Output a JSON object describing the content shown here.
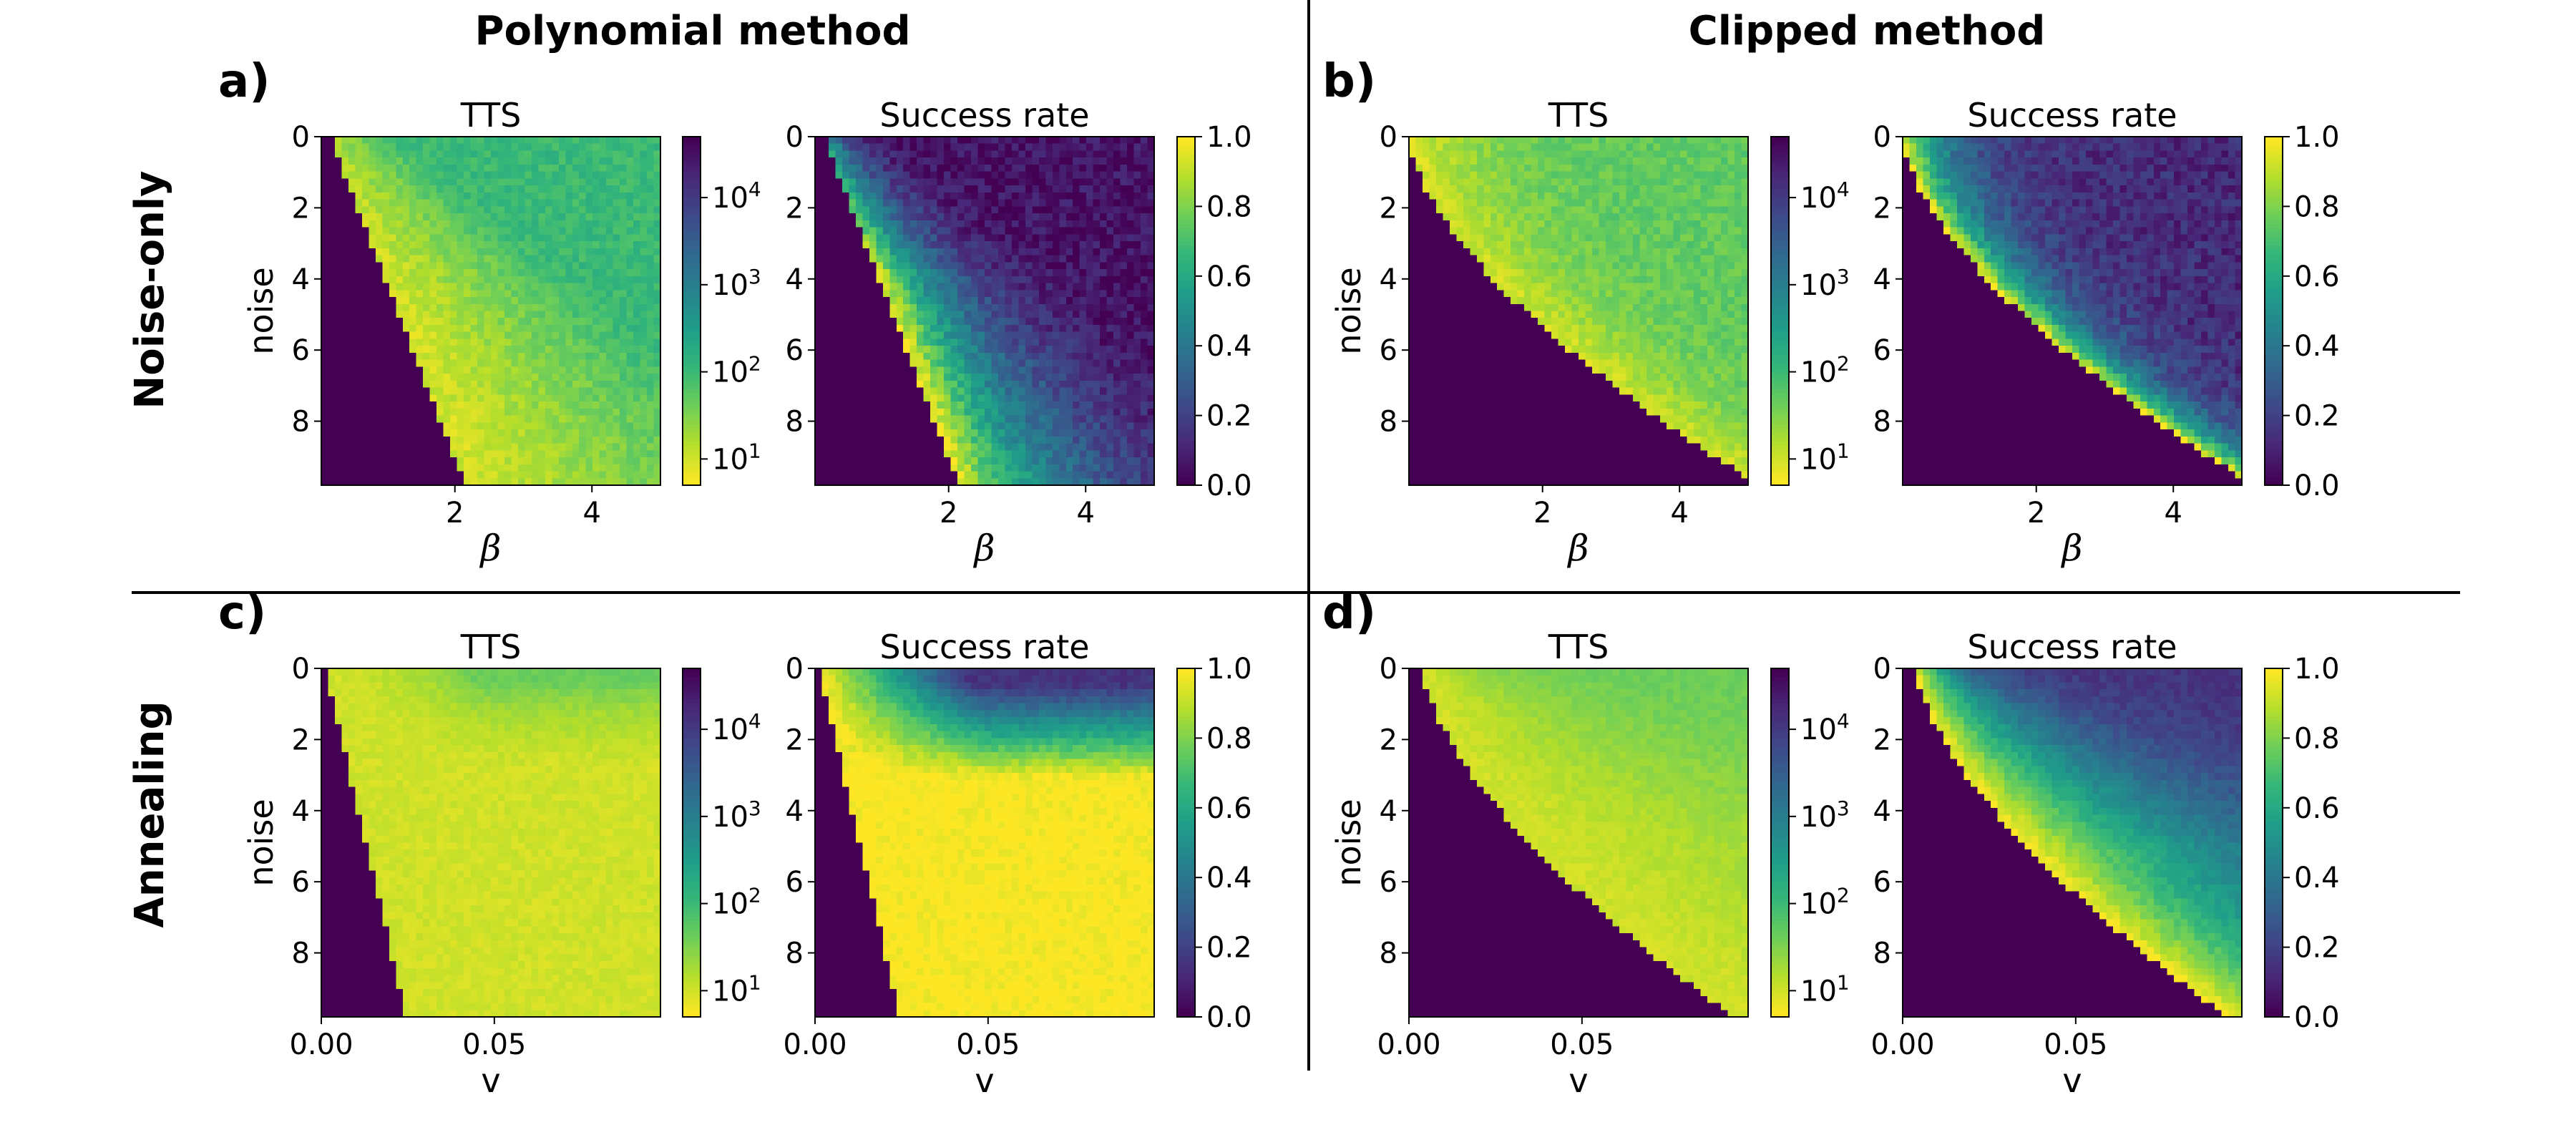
{
  "figure": {
    "column_titles": [
      "Polynomial method",
      "Clipped method"
    ],
    "row_labels": [
      "Noise-only",
      "Annealing"
    ]
  },
  "colormap": {
    "name": "viridis",
    "stops": [
      "#440154",
      "#482878",
      "#3e4989",
      "#31688e",
      "#26828e",
      "#1f9e89",
      "#35b779",
      "#6ece58",
      "#b5de2b",
      "#fde725"
    ]
  },
  "chart_data": [
    {
      "panel": "a)",
      "type": "heatmap",
      "title": "TTS",
      "xlabel": "β",
      "ylabel": "noise",
      "x_range": [
        0.05,
        5.0
      ],
      "y_range": [
        0.0,
        9.8
      ],
      "xticks": [
        "2",
        "4"
      ],
      "yticks": [
        "0",
        "2",
        "4",
        "6",
        "8"
      ],
      "colorbar": {
        "scale": "log",
        "reversed": true,
        "range": [
          5,
          50000
        ],
        "ticks": [
          "10^1",
          "10^2",
          "10^3",
          "10^4"
        ]
      },
      "model": {
        "method": "polynomial",
        "schedule": "noise",
        "metric": "tts"
      }
    },
    {
      "panel": "",
      "type": "heatmap",
      "title": "Success rate",
      "xlabel": "β",
      "ylabel": "",
      "x_range": [
        0.05,
        5.0
      ],
      "y_range": [
        0.0,
        9.8
      ],
      "xticks": [
        "2",
        "4"
      ],
      "yticks": [
        "0",
        "2",
        "4",
        "6",
        "8"
      ],
      "colorbar": {
        "scale": "linear",
        "reversed": false,
        "range": [
          0.0,
          1.0
        ],
        "ticks": [
          "0.0",
          "0.2",
          "0.4",
          "0.6",
          "0.8",
          "1.0"
        ]
      },
      "model": {
        "method": "polynomial",
        "schedule": "noise",
        "metric": "success"
      }
    },
    {
      "panel": "b)",
      "type": "heatmap",
      "title": "TTS",
      "xlabel": "β",
      "ylabel": "noise",
      "x_range": [
        0.05,
        5.0
      ],
      "y_range": [
        0.0,
        9.8
      ],
      "xticks": [
        "2",
        "4"
      ],
      "yticks": [
        "0",
        "2",
        "4",
        "6",
        "8"
      ],
      "colorbar": {
        "scale": "log",
        "reversed": true,
        "range": [
          5,
          50000
        ],
        "ticks": [
          "10^1",
          "10^2",
          "10^3",
          "10^4"
        ]
      },
      "model": {
        "method": "clipped",
        "schedule": "noise",
        "metric": "tts"
      }
    },
    {
      "panel": "",
      "type": "heatmap",
      "title": "Success rate",
      "xlabel": "β",
      "ylabel": "",
      "x_range": [
        0.05,
        5.0
      ],
      "y_range": [
        0.0,
        9.8
      ],
      "xticks": [
        "2",
        "4"
      ],
      "yticks": [
        "0",
        "2",
        "4",
        "6",
        "8"
      ],
      "colorbar": {
        "scale": "linear",
        "reversed": false,
        "range": [
          0.0,
          1.0
        ],
        "ticks": [
          "0.0",
          "0.2",
          "0.4",
          "0.6",
          "0.8",
          "1.0"
        ]
      },
      "model": {
        "method": "clipped",
        "schedule": "noise",
        "metric": "success"
      }
    },
    {
      "panel": "c)",
      "type": "heatmap",
      "title": "TTS",
      "xlabel": "v",
      "ylabel": "noise",
      "x_range": [
        0.0,
        0.098
      ],
      "y_range": [
        0.0,
        9.8
      ],
      "xticks": [
        "0.00",
        "0.05"
      ],
      "yticks": [
        "0",
        "2",
        "4",
        "6",
        "8"
      ],
      "colorbar": {
        "scale": "log",
        "reversed": true,
        "range": [
          5,
          50000
        ],
        "ticks": [
          "10^1",
          "10^2",
          "10^3",
          "10^4"
        ]
      },
      "model": {
        "method": "polynomial",
        "schedule": "anneal",
        "metric": "tts"
      }
    },
    {
      "panel": "",
      "type": "heatmap",
      "title": "Success rate",
      "xlabel": "v",
      "ylabel": "",
      "x_range": [
        0.0,
        0.098
      ],
      "y_range": [
        0.0,
        9.8
      ],
      "xticks": [
        "0.00",
        "0.05"
      ],
      "yticks": [
        "0",
        "2",
        "4",
        "6",
        "8"
      ],
      "colorbar": {
        "scale": "linear",
        "reversed": false,
        "range": [
          0.0,
          1.0
        ],
        "ticks": [
          "0.0",
          "0.2",
          "0.4",
          "0.6",
          "0.8",
          "1.0"
        ]
      },
      "model": {
        "method": "polynomial",
        "schedule": "anneal",
        "metric": "success"
      }
    },
    {
      "panel": "d)",
      "type": "heatmap",
      "title": "TTS",
      "xlabel": "v",
      "ylabel": "noise",
      "x_range": [
        0.0,
        0.098
      ],
      "y_range": [
        0.0,
        9.8
      ],
      "xticks": [
        "0.00",
        "0.05"
      ],
      "yticks": [
        "0",
        "2",
        "4",
        "6",
        "8"
      ],
      "colorbar": {
        "scale": "log",
        "reversed": true,
        "range": [
          5,
          50000
        ],
        "ticks": [
          "10^1",
          "10^2",
          "10^3",
          "10^4"
        ]
      },
      "model": {
        "method": "clipped",
        "schedule": "anneal",
        "metric": "tts"
      }
    },
    {
      "panel": "",
      "type": "heatmap",
      "title": "Success rate",
      "xlabel": "v",
      "ylabel": "",
      "x_range": [
        0.0,
        0.098
      ],
      "y_range": [
        0.0,
        9.8
      ],
      "xticks": [
        "0.00",
        "0.05"
      ],
      "yticks": [
        "0",
        "2",
        "4",
        "6",
        "8"
      ],
      "colorbar": {
        "scale": "linear",
        "reversed": false,
        "range": [
          0.0,
          1.0
        ],
        "ticks": [
          "0.0",
          "0.2",
          "0.4",
          "0.6",
          "0.8",
          "1.0"
        ]
      },
      "model": {
        "method": "clipped",
        "schedule": "anneal",
        "metric": "success"
      }
    }
  ]
}
